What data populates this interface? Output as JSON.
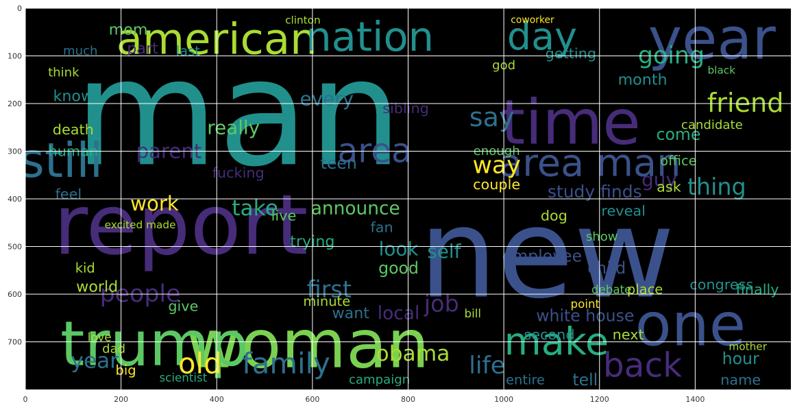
{
  "chart_data": {
    "type": "wordcloud",
    "title": "",
    "xlabel": "",
    "ylabel": "",
    "xlim": [
      0,
      1600
    ],
    "ylim": [
      800,
      0
    ],
    "x_ticks": [
      0,
      200,
      400,
      600,
      800,
      1000,
      1200,
      1400
    ],
    "y_ticks": [
      0,
      100,
      200,
      300,
      400,
      500,
      600,
      700
    ],
    "grid": true,
    "background": "#000000",
    "palette": [
      "#440154",
      "#472c7a",
      "#3b518b",
      "#2c718e",
      "#21908d",
      "#27ad81",
      "#5cc863",
      "#aadc32",
      "#fde725"
    ],
    "words": [
      {
        "text": "man",
        "x": 445,
        "y": 220,
        "size": 310,
        "color": "#21908d"
      },
      {
        "text": "new",
        "x": 1090,
        "y": 515,
        "size": 260,
        "color": "#3b518b"
      },
      {
        "text": "report",
        "x": 325,
        "y": 455,
        "size": 175,
        "color": "#472c7a"
      },
      {
        "text": "woman",
        "x": 590,
        "y": 705,
        "size": 140,
        "color": "#7ad151"
      },
      {
        "text": "trump",
        "x": 270,
        "y": 705,
        "size": 130,
        "color": "#5cc863"
      },
      {
        "text": "time",
        "x": 1140,
        "y": 240,
        "size": 130,
        "color": "#472c7a"
      },
      {
        "text": "year",
        "x": 1435,
        "y": 65,
        "size": 120,
        "color": "#3b518b"
      },
      {
        "text": "one",
        "x": 1390,
        "y": 665,
        "size": 125,
        "color": "#3b518b"
      },
      {
        "text": "still",
        "x": 75,
        "y": 320,
        "size": 100,
        "color": "#2c718e"
      },
      {
        "text": "american",
        "x": 400,
        "y": 65,
        "size": 90,
        "color": "#aadc32"
      },
      {
        "text": "nation",
        "x": 720,
        "y": 60,
        "size": 85,
        "color": "#21908d"
      },
      {
        "text": "day",
        "x": 1080,
        "y": 60,
        "size": 80,
        "color": "#21908d"
      },
      {
        "text": "area man",
        "x": 1180,
        "y": 325,
        "size": 80,
        "color": "#3b518b"
      },
      {
        "text": "area",
        "x": 730,
        "y": 300,
        "size": 70,
        "color": "#3b518b"
      },
      {
        "text": "make",
        "x": 1110,
        "y": 700,
        "size": 80,
        "color": "#27ad81"
      },
      {
        "text": "back",
        "x": 1290,
        "y": 750,
        "size": 70,
        "color": "#472c7a"
      },
      {
        "text": "friend",
        "x": 1505,
        "y": 200,
        "size": 55,
        "color": "#aadc32"
      },
      {
        "text": "going",
        "x": 1350,
        "y": 100,
        "size": 50,
        "color": "#27ad81"
      },
      {
        "text": "say",
        "x": 975,
        "y": 230,
        "size": 55,
        "color": "#2c718e"
      },
      {
        "text": "way",
        "x": 985,
        "y": 330,
        "size": 50,
        "color": "#fde725"
      },
      {
        "text": "family",
        "x": 545,
        "y": 745,
        "size": 60,
        "color": "#2c718e"
      },
      {
        "text": "old",
        "x": 365,
        "y": 745,
        "size": 60,
        "color": "#fde725"
      },
      {
        "text": "year",
        "x": 145,
        "y": 740,
        "size": 45,
        "color": "#2c718e"
      },
      {
        "text": "obama",
        "x": 810,
        "y": 725,
        "size": 45,
        "color": "#aadc32"
      },
      {
        "text": "life",
        "x": 965,
        "y": 750,
        "size": 50,
        "color": "#2c718e"
      },
      {
        "text": "take",
        "x": 480,
        "y": 420,
        "size": 45,
        "color": "#27ad81"
      },
      {
        "text": "announce",
        "x": 690,
        "y": 420,
        "size": 38,
        "color": "#5cc863"
      },
      {
        "text": "work",
        "x": 270,
        "y": 410,
        "size": 42,
        "color": "#fde725"
      },
      {
        "text": "first",
        "x": 635,
        "y": 590,
        "size": 48,
        "color": "#2c718e"
      },
      {
        "text": "people",
        "x": 240,
        "y": 600,
        "size": 50,
        "color": "#472c7a"
      },
      {
        "text": "every",
        "x": 630,
        "y": 190,
        "size": 40,
        "color": "#2c718e"
      },
      {
        "text": "thing",
        "x": 1445,
        "y": 375,
        "size": 48,
        "color": "#21908d"
      },
      {
        "text": "study finds",
        "x": 1190,
        "y": 385,
        "size": 36,
        "color": "#3b518b"
      },
      {
        "text": "white house",
        "x": 1170,
        "y": 645,
        "size": 34,
        "color": "#3b518b"
      },
      {
        "text": "look",
        "x": 780,
        "y": 505,
        "size": 40,
        "color": "#21908d"
      },
      {
        "text": "good",
        "x": 780,
        "y": 545,
        "size": 34,
        "color": "#5cc863"
      },
      {
        "text": "child",
        "x": 1215,
        "y": 545,
        "size": 34,
        "color": "#3b518b"
      },
      {
        "text": "second",
        "x": 1095,
        "y": 685,
        "size": 30,
        "color": "#21908d"
      },
      {
        "text": "next",
        "x": 1260,
        "y": 685,
        "size": 30,
        "color": "#aadc32"
      },
      {
        "text": "hour",
        "x": 1495,
        "y": 735,
        "size": 34,
        "color": "#21908d"
      },
      {
        "text": "name",
        "x": 1495,
        "y": 780,
        "size": 30,
        "color": "#2c718e"
      },
      {
        "text": "entire",
        "x": 1045,
        "y": 780,
        "size": 28,
        "color": "#2c718e"
      },
      {
        "text": "tell",
        "x": 1170,
        "y": 780,
        "size": 34,
        "color": "#2c718e"
      },
      {
        "text": "couple",
        "x": 985,
        "y": 370,
        "size": 30,
        "color": "#fde725"
      },
      {
        "text": "enough",
        "x": 985,
        "y": 300,
        "size": 26,
        "color": "#5cc863"
      },
      {
        "text": "come",
        "x": 1365,
        "y": 265,
        "size": 34,
        "color": "#27ad81"
      },
      {
        "text": "office",
        "x": 1365,
        "y": 320,
        "size": 28,
        "color": "#5cc863"
      },
      {
        "text": "getting",
        "x": 1140,
        "y": 95,
        "size": 30,
        "color": "#21908d"
      },
      {
        "text": "guy",
        "x": 1325,
        "y": 360,
        "size": 40,
        "color": "#472c7a"
      },
      {
        "text": "reveal",
        "x": 1250,
        "y": 425,
        "size": 30,
        "color": "#21908d"
      },
      {
        "text": "dog",
        "x": 1105,
        "y": 435,
        "size": 30,
        "color": "#aadc32"
      },
      {
        "text": "candidate",
        "x": 1435,
        "y": 245,
        "size": 26,
        "color": "#aadc32"
      },
      {
        "text": "black",
        "x": 1455,
        "y": 130,
        "size": 22,
        "color": "#5cc863"
      },
      {
        "text": "teen",
        "x": 655,
        "y": 325,
        "size": 34,
        "color": "#2c718e"
      },
      {
        "text": "death",
        "x": 100,
        "y": 255,
        "size": 30,
        "color": "#aadc32"
      },
      {
        "text": "human",
        "x": 100,
        "y": 300,
        "size": 30,
        "color": "#27ad81"
      },
      {
        "text": "know",
        "x": 100,
        "y": 185,
        "size": 32,
        "color": "#21908d"
      },
      {
        "text": "think",
        "x": 80,
        "y": 135,
        "size": 26,
        "color": "#aadc32"
      },
      {
        "text": "much",
        "x": 115,
        "y": 90,
        "size": 26,
        "color": "#2c718e"
      },
      {
        "text": "mom",
        "x": 215,
        "y": 45,
        "size": 32,
        "color": "#5cc863"
      },
      {
        "text": "part",
        "x": 245,
        "y": 85,
        "size": 32,
        "color": "#472c7a"
      },
      {
        "text": "last",
        "x": 340,
        "y": 90,
        "size": 28,
        "color": "#21908d"
      },
      {
        "text": "clinton",
        "x": 580,
        "y": 25,
        "size": 22,
        "color": "#aadc32"
      },
      {
        "text": "coworker",
        "x": 1060,
        "y": 25,
        "size": 20,
        "color": "#fde725"
      },
      {
        "text": "really",
        "x": 435,
        "y": 250,
        "size": 40,
        "color": "#5cc863"
      },
      {
        "text": "parent",
        "x": 300,
        "y": 300,
        "size": 42,
        "color": "#472c7a"
      },
      {
        "text": "live",
        "x": 540,
        "y": 435,
        "size": 30,
        "color": "#5cc863"
      },
      {
        "text": "feel",
        "x": 90,
        "y": 390,
        "size": 30,
        "color": "#2c718e"
      },
      {
        "text": "kid",
        "x": 125,
        "y": 545,
        "size": 28,
        "color": "#aadc32"
      },
      {
        "text": "world",
        "x": 150,
        "y": 585,
        "size": 32,
        "color": "#aadc32"
      },
      {
        "text": "give",
        "x": 330,
        "y": 625,
        "size": 30,
        "color": "#5cc863"
      },
      {
        "text": "minute",
        "x": 630,
        "y": 615,
        "size": 28,
        "color": "#aadc32"
      },
      {
        "text": "want",
        "x": 680,
        "y": 640,
        "size": 32,
        "color": "#2c718e"
      },
      {
        "text": "local",
        "x": 780,
        "y": 640,
        "size": 38,
        "color": "#472c7a"
      },
      {
        "text": "job",
        "x": 870,
        "y": 620,
        "size": 48,
        "color": "#472c7a"
      },
      {
        "text": "self",
        "x": 875,
        "y": 510,
        "size": 40,
        "color": "#21908d"
      },
      {
        "text": "employee",
        "x": 1080,
        "y": 520,
        "size": 34,
        "color": "#3b518b"
      },
      {
        "text": "congress",
        "x": 1455,
        "y": 580,
        "size": 30,
        "color": "#21908d"
      },
      {
        "text": "finally",
        "x": 1530,
        "y": 590,
        "size": 30,
        "color": "#27ad81"
      },
      {
        "text": "campaign",
        "x": 740,
        "y": 780,
        "size": 26,
        "color": "#27ad81"
      },
      {
        "text": "big",
        "x": 210,
        "y": 760,
        "size": 28,
        "color": "#fde725"
      },
      {
        "text": "fucking",
        "x": 445,
        "y": 345,
        "size": 30,
        "color": "#472c7a"
      },
      {
        "text": "trying",
        "x": 600,
        "y": 490,
        "size": 32,
        "color": "#27ad81"
      },
      {
        "text": "fan",
        "x": 745,
        "y": 460,
        "size": 30,
        "color": "#2c718e"
      },
      {
        "text": "sibling",
        "x": 795,
        "y": 210,
        "size": 30,
        "color": "#472c7a"
      },
      {
        "text": "god",
        "x": 1000,
        "y": 120,
        "size": 26,
        "color": "#aadc32"
      },
      {
        "text": "month",
        "x": 1290,
        "y": 150,
        "size": 32,
        "color": "#21908d"
      },
      {
        "text": "ask",
        "x": 1345,
        "y": 375,
        "size": 30,
        "color": "#aadc32"
      },
      {
        "text": "point",
        "x": 1170,
        "y": 620,
        "size": 24,
        "color": "#fde725"
      },
      {
        "text": "debate",
        "x": 1225,
        "y": 590,
        "size": 24,
        "color": "#5cc863"
      },
      {
        "text": "place",
        "x": 1295,
        "y": 590,
        "size": 28,
        "color": "#aadc32"
      },
      {
        "text": "excited made",
        "x": 240,
        "y": 455,
        "size": 22,
        "color": "#aadc32"
      },
      {
        "text": "dad",
        "x": 185,
        "y": 715,
        "size": 26,
        "color": "#aadc32"
      },
      {
        "text": "love",
        "x": 155,
        "y": 690,
        "size": 24,
        "color": "#aadc32"
      },
      {
        "text": "scientist",
        "x": 330,
        "y": 775,
        "size": 24,
        "color": "#27ad81"
      },
      {
        "text": "bill",
        "x": 935,
        "y": 640,
        "size": 24,
        "color": "#aadc32"
      },
      {
        "text": "mother",
        "x": 1510,
        "y": 710,
        "size": 22,
        "color": "#aadc32"
      },
      {
        "text": "show",
        "x": 1205,
        "y": 480,
        "size": 26,
        "color": "#5cc863"
      }
    ]
  }
}
